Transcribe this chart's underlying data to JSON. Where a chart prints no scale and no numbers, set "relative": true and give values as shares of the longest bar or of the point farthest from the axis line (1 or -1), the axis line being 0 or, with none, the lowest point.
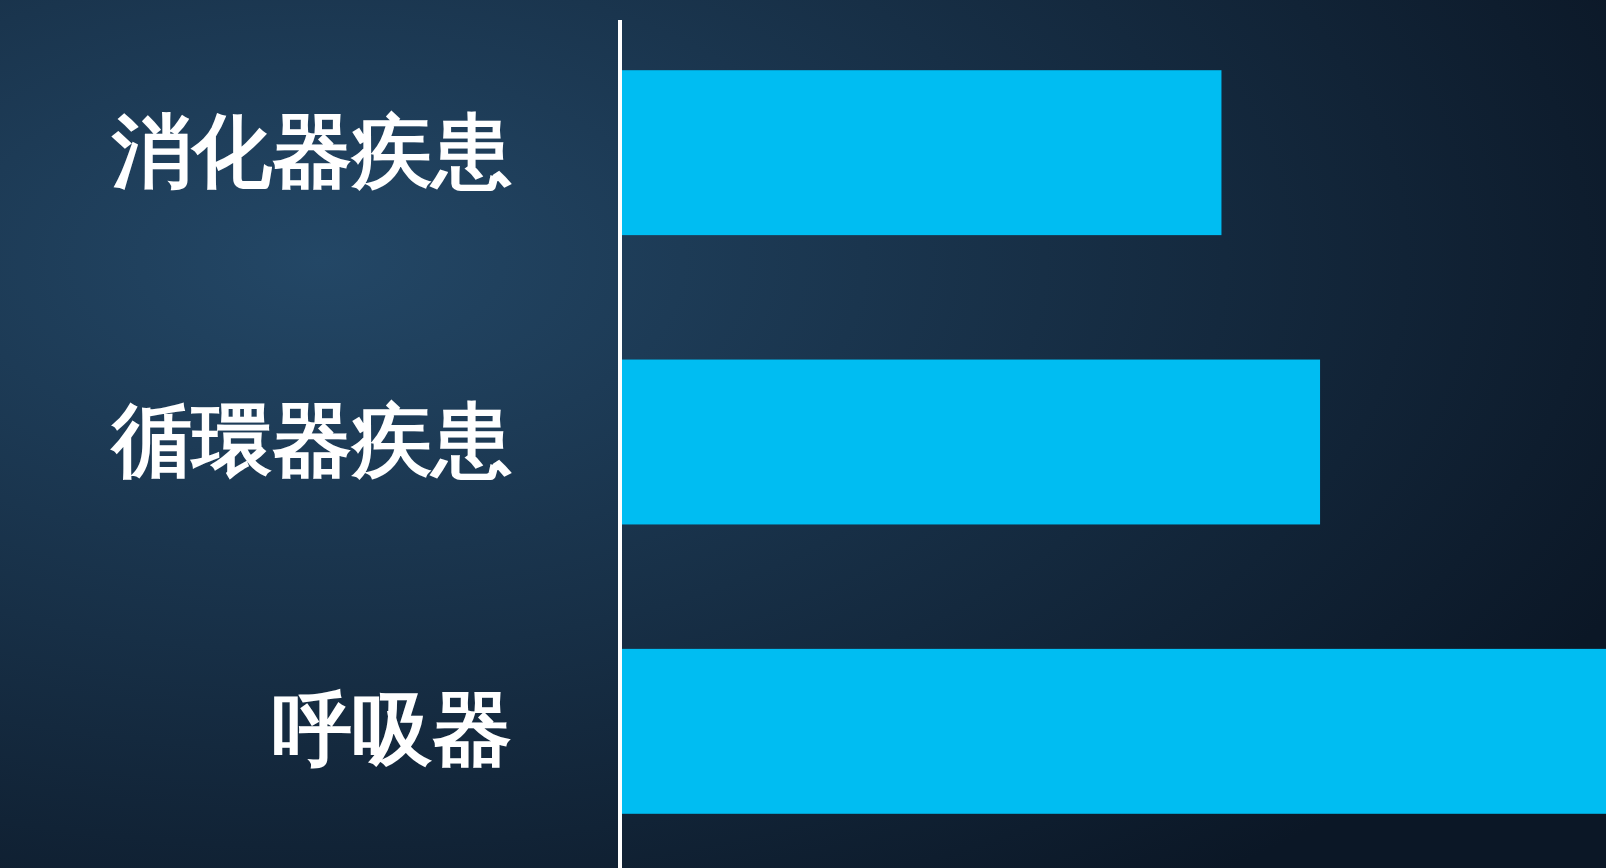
{
  "chart_data": {
    "type": "bar",
    "orientation": "horizontal",
    "relative": true,
    "categories": [
      "消化器疾患",
      "循環器疾患",
      "呼吸器"
    ],
    "values": [
      0.61,
      0.71,
      1
    ],
    "color": "#00bdf2"
  }
}
